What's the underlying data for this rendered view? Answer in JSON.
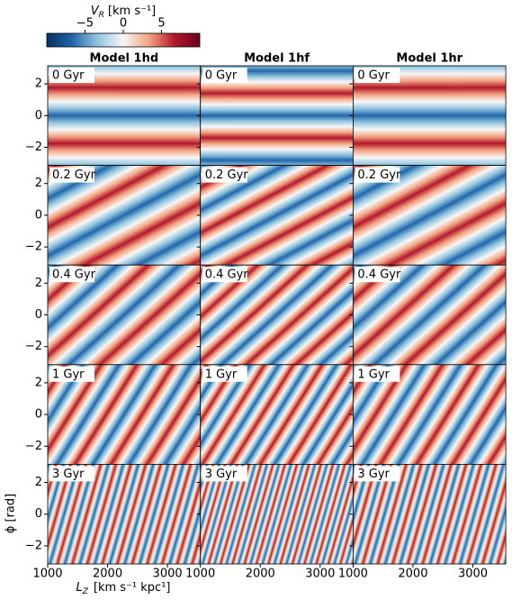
{
  "chart_data": {
    "type": "heatmap",
    "colorbar": {
      "label": {
        "symbol": "V",
        "sub": "R",
        "unit": "[km s⁻¹]"
      },
      "lim": [
        -10,
        10
      ],
      "ticks": [
        {
          "value": -5,
          "label": "−5"
        },
        0,
        5
      ],
      "colors": [
        "#053061",
        "#2166ac",
        "#92c5de",
        "#f7f7f7",
        "#f4a582",
        "#b2182b",
        "#67001f"
      ]
    },
    "column_titles": [
      "Model 1hd",
      "Model 1hf",
      "Model 1hr"
    ],
    "row_labels": [
      "0 Gyr",
      "0.2 Gyr",
      "0.4 Gyr",
      "1 Gyr",
      "3 Gyr"
    ],
    "xlabel": {
      "symbol": "L",
      "sub": "Z",
      "unit": "[km s⁻¹ kpc¹]"
    },
    "ylabel": "ϕ [rad]",
    "xlim": [
      1000,
      3550
    ],
    "xticks": [
      1000,
      2000,
      3000
    ],
    "ylim": [
      -3.1416,
      3.1416
    ],
    "yticks": [
      {
        "value": -2,
        "label": "−2"
      },
      0,
      2
    ]
  }
}
